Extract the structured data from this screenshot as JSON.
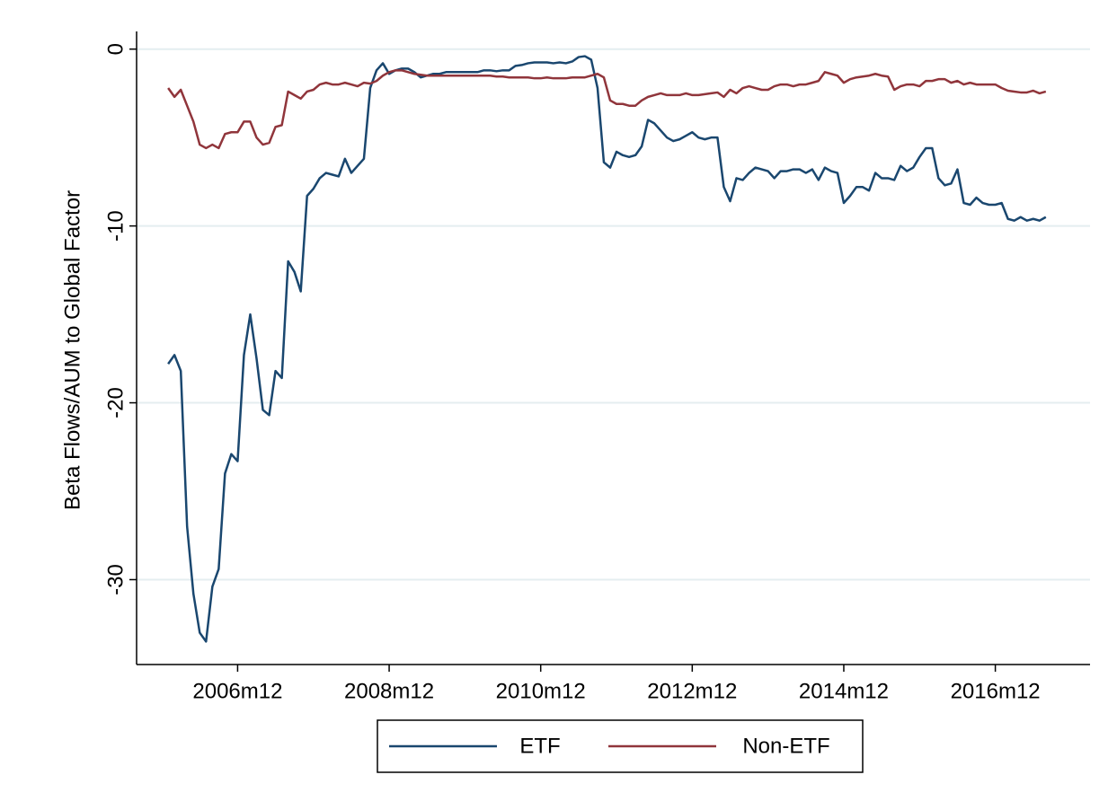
{
  "chart_data": {
    "type": "line",
    "y_label": "Beta Flows/AUM to Global Factor",
    "x": [
      "2006m1",
      "2006m2",
      "2006m3",
      "2006m4",
      "2006m5",
      "2006m6",
      "2006m7",
      "2006m8",
      "2006m9",
      "2006m10",
      "2006m11",
      "2006m12",
      "2007m1",
      "2007m2",
      "2007m3",
      "2007m4",
      "2007m5",
      "2007m6",
      "2007m7",
      "2007m8",
      "2007m9",
      "2007m10",
      "2007m11",
      "2007m12",
      "2008m1",
      "2008m2",
      "2008m3",
      "2008m4",
      "2008m5",
      "2008m6",
      "2008m7",
      "2008m8",
      "2008m9",
      "2008m10",
      "2008m11",
      "2008m12",
      "2009m1",
      "2009m2",
      "2009m3",
      "2009m4",
      "2009m5",
      "2009m6",
      "2009m7",
      "2009m8",
      "2009m9",
      "2009m10",
      "2009m11",
      "2009m12",
      "2010m1",
      "2010m2",
      "2010m3",
      "2010m4",
      "2010m5",
      "2010m6",
      "2010m7",
      "2010m8",
      "2010m9",
      "2010m10",
      "2010m11",
      "2010m12",
      "2011m1",
      "2011m2",
      "2011m3",
      "2011m4",
      "2011m5",
      "2011m6",
      "2011m7",
      "2011m8",
      "2011m9",
      "2011m10",
      "2011m11",
      "2011m12",
      "2012m1",
      "2012m2",
      "2012m3",
      "2012m4",
      "2012m5",
      "2012m6",
      "2012m7",
      "2012m8",
      "2012m9",
      "2012m10",
      "2012m11",
      "2012m12",
      "2013m1",
      "2013m2",
      "2013m3",
      "2013m4",
      "2013m5",
      "2013m6",
      "2013m7",
      "2013m8",
      "2013m9",
      "2013m10",
      "2013m11",
      "2013m12",
      "2014m1",
      "2014m2",
      "2014m3",
      "2014m4",
      "2014m5",
      "2014m6",
      "2014m7",
      "2014m8",
      "2014m9",
      "2014m10",
      "2014m11",
      "2014m12",
      "2015m1",
      "2015m2",
      "2015m3",
      "2015m4",
      "2015m5",
      "2015m6",
      "2015m7",
      "2015m8",
      "2015m9",
      "2015m10",
      "2015m11",
      "2015m12",
      "2016m1",
      "2016m2",
      "2016m3",
      "2016m4",
      "2016m5",
      "2016m6",
      "2016m7",
      "2016m8",
      "2016m9",
      "2016m10",
      "2016m11",
      "2016m12",
      "2017m1",
      "2017m2",
      "2017m3",
      "2017m4",
      "2017m5",
      "2017m6",
      "2017m7",
      "2017m8"
    ],
    "series": [
      {
        "name": "ETF",
        "color": "#1a476f",
        "values": [
          -17.8,
          -17.3,
          -18.2,
          -27,
          -30.8,
          -33,
          -33.5,
          -30.4,
          -29.4,
          -24,
          -22.9,
          -23.3,
          -17.3,
          -15,
          -17.5,
          -20.4,
          -20.7,
          -18.2,
          -18.6,
          -12,
          -12.6,
          -13.7,
          -8.3,
          -7.9,
          -7.3,
          -7,
          -7.1,
          -7.2,
          -6.2,
          -7,
          -6.6,
          -6.2,
          -2.2,
          -1.2,
          -0.8,
          -1.4,
          -1.2,
          -1.1,
          -1.1,
          -1.3,
          -1.6,
          -1.5,
          -1.4,
          -1.4,
          -1.3,
          -1.3,
          -1.3,
          -1.3,
          -1.3,
          -1.3,
          -1.2,
          -1.2,
          -1.25,
          -1.2,
          -1.2,
          -0.95,
          -0.9,
          -0.8,
          -0.75,
          -0.75,
          -0.75,
          -0.8,
          -0.75,
          -0.8,
          -0.7,
          -0.45,
          -0.4,
          -0.6,
          -2.2,
          -6.4,
          -6.7,
          -5.8,
          -6,
          -6.1,
          -6,
          -5.5,
          -4,
          -4.2,
          -4.6,
          -5,
          -5.2,
          -5.1,
          -4.9,
          -4.7,
          -5,
          -5.1,
          -5,
          -5,
          -7.8,
          -8.6,
          -7.3,
          -7.4,
          -7,
          -6.7,
          -6.8,
          -6.9,
          -7.3,
          -6.9,
          -6.9,
          -6.8,
          -6.8,
          -7,
          -6.8,
          -7.4,
          -6.7,
          -6.9,
          -7,
          -8.7,
          -8.3,
          -7.8,
          -7.8,
          -8,
          -7,
          -7.3,
          -7.3,
          -7.4,
          -6.6,
          -6.9,
          -6.7,
          -6.1,
          -5.6,
          -5.6,
          -7.3,
          -7.7,
          -7.6,
          -6.8,
          -8.7,
          -8.8,
          -8.4,
          -8.7,
          -8.8,
          -8.8,
          -8.7,
          -9.6,
          -9.7,
          -9.5,
          -9.7,
          -9.6,
          -9.7,
          -9.5
        ]
      },
      {
        "name": "Non-ETF",
        "color": "#90353b",
        "values": [
          -2.2,
          -2.7,
          -2.3,
          -3.2,
          -4.1,
          -5.4,
          -5.6,
          -5.4,
          -5.6,
          -4.8,
          -4.7,
          -4.7,
          -4.1,
          -4.1,
          -5,
          -5.4,
          -5.3,
          -4.4,
          -4.3,
          -2.4,
          -2.6,
          -2.8,
          -2.4,
          -2.3,
          -2,
          -1.9,
          -2,
          -2,
          -1.9,
          -2,
          -2.1,
          -1.9,
          -1.95,
          -1.8,
          -1.5,
          -1.3,
          -1.2,
          -1.2,
          -1.3,
          -1.4,
          -1.45,
          -1.5,
          -1.5,
          -1.5,
          -1.5,
          -1.5,
          -1.5,
          -1.5,
          -1.5,
          -1.5,
          -1.5,
          -1.5,
          -1.55,
          -1.55,
          -1.6,
          -1.6,
          -1.6,
          -1.6,
          -1.65,
          -1.65,
          -1.6,
          -1.65,
          -1.65,
          -1.65,
          -1.6,
          -1.6,
          -1.6,
          -1.5,
          -1.4,
          -1.6,
          -2.9,
          -3.1,
          -3.1,
          -3.2,
          -3.2,
          -2.9,
          -2.7,
          -2.6,
          -2.5,
          -2.6,
          -2.6,
          -2.6,
          -2.5,
          -2.6,
          -2.6,
          -2.55,
          -2.5,
          -2.45,
          -2.7,
          -2.3,
          -2.5,
          -2.2,
          -2.1,
          -2.2,
          -2.3,
          -2.3,
          -2.1,
          -2,
          -2,
          -2.1,
          -2,
          -2,
          -1.9,
          -1.8,
          -1.3,
          -1.4,
          -1.5,
          -1.9,
          -1.7,
          -1.6,
          -1.55,
          -1.5,
          -1.4,
          -1.5,
          -1.55,
          -2.3,
          -2.1,
          -2,
          -2,
          -2.1,
          -1.8,
          -1.8,
          -1.7,
          -1.7,
          -1.9,
          -1.8,
          -2,
          -1.9,
          -2,
          -2,
          -2,
          -2,
          -2.2,
          -2.35,
          -2.4,
          -2.45,
          -2.45,
          -2.35,
          -2.5,
          -2.4
        ]
      }
    ],
    "xlim": [
      "2005m8",
      "2018m3"
    ],
    "xticks": [
      "2006m12",
      "2008m12",
      "2010m12",
      "2012m12",
      "2014m12",
      "2016m12"
    ],
    "ylim": [
      -34.8,
      1
    ],
    "yticks": [
      -30,
      -20,
      -10,
      0
    ],
    "grid": true,
    "legend": "bottom"
  }
}
